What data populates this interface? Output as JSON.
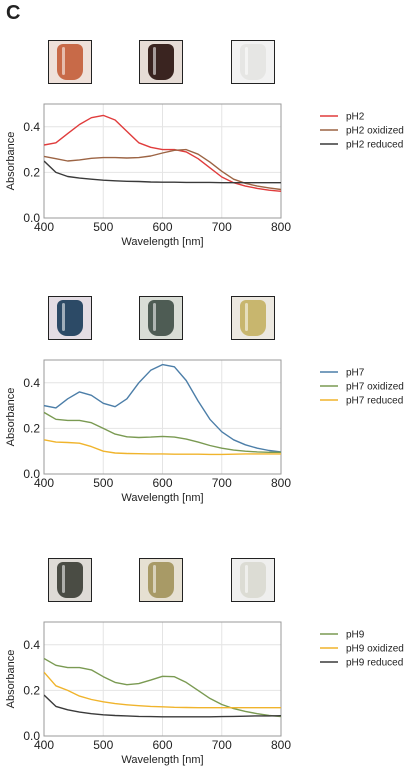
{
  "panel_label": "C",
  "chart_data": [
    {
      "type": "line",
      "xlabel": "Wavelength [nm]",
      "ylabel": "Absorbance",
      "xlim": [
        400,
        800
      ],
      "ylim": [
        0.0,
        0.5
      ],
      "xticks": [
        "400",
        "500",
        "600",
        "700",
        "800"
      ],
      "yticks": [
        "0.0",
        "0.2",
        "0.4"
      ],
      "grid": true,
      "legend": "right",
      "photos": [
        {
          "name": "pH2-vial-photo",
          "bg": "#efe1da",
          "liquid": "#c86a48"
        },
        {
          "name": "pH2-oxidized-vial-photo",
          "bg": "#e6dcd6",
          "liquid": "#3a2420"
        },
        {
          "name": "pH2-reduced-vial-photo",
          "bg": "#f2f2f2",
          "liquid": "#e6e6e4"
        }
      ],
      "series": [
        {
          "name": "pH2",
          "color": "#e03c3c",
          "x": [
            400,
            420,
            440,
            460,
            480,
            500,
            520,
            540,
            560,
            580,
            600,
            620,
            640,
            660,
            680,
            700,
            720,
            740,
            760,
            780,
            800
          ],
          "y": [
            0.32,
            0.33,
            0.37,
            0.41,
            0.44,
            0.45,
            0.43,
            0.38,
            0.33,
            0.31,
            0.3,
            0.3,
            0.29,
            0.26,
            0.22,
            0.18,
            0.155,
            0.14,
            0.13,
            0.122,
            0.117
          ]
        },
        {
          "name": "pH2 oxidized",
          "color": "#9c6444",
          "x": [
            400,
            420,
            440,
            460,
            480,
            500,
            520,
            540,
            560,
            580,
            600,
            620,
            640,
            660,
            680,
            700,
            720,
            740,
            760,
            780,
            800
          ],
          "y": [
            0.27,
            0.26,
            0.25,
            0.255,
            0.262,
            0.265,
            0.265,
            0.263,
            0.265,
            0.272,
            0.285,
            0.297,
            0.3,
            0.28,
            0.245,
            0.205,
            0.17,
            0.152,
            0.14,
            0.132,
            0.125
          ]
        },
        {
          "name": "pH2 reduced",
          "color": "#3a3a3a",
          "x": [
            400,
            420,
            440,
            460,
            480,
            500,
            520,
            540,
            560,
            580,
            600,
            620,
            640,
            660,
            680,
            700,
            720,
            740,
            760,
            780,
            800
          ],
          "y": [
            0.25,
            0.2,
            0.182,
            0.175,
            0.17,
            0.166,
            0.163,
            0.161,
            0.16,
            0.158,
            0.157,
            0.157,
            0.156,
            0.156,
            0.156,
            0.155,
            0.155,
            0.155,
            0.155,
            0.155,
            0.155
          ]
        }
      ]
    },
    {
      "type": "line",
      "xlabel": "Wavelength [nm]",
      "ylabel": "Absorbance",
      "xlim": [
        400,
        800
      ],
      "ylim": [
        0.0,
        0.5
      ],
      "xticks": [
        "400",
        "500",
        "600",
        "700",
        "800"
      ],
      "yticks": [
        "0.0",
        "0.2",
        "0.4"
      ],
      "grid": true,
      "legend": "right",
      "photos": [
        {
          "name": "pH7-vial-photo",
          "bg": "#e4dde4",
          "liquid": "#2c4a66"
        },
        {
          "name": "pH7-oxidized-vial-photo",
          "bg": "#d9ddd6",
          "liquid": "#4e5c54"
        },
        {
          "name": "pH7-reduced-vial-photo",
          "bg": "#ece8e0",
          "liquid": "#c8b66e"
        }
      ],
      "series": [
        {
          "name": "pH7",
          "color": "#4c7ea8",
          "x": [
            400,
            420,
            440,
            460,
            480,
            500,
            520,
            540,
            560,
            580,
            600,
            620,
            640,
            660,
            680,
            700,
            720,
            740,
            760,
            780,
            800
          ],
          "y": [
            0.3,
            0.29,
            0.33,
            0.36,
            0.345,
            0.31,
            0.295,
            0.33,
            0.4,
            0.455,
            0.48,
            0.47,
            0.41,
            0.32,
            0.24,
            0.185,
            0.15,
            0.128,
            0.113,
            0.103,
            0.097
          ]
        },
        {
          "name": "pH7 oxidized",
          "color": "#7a9a52",
          "x": [
            400,
            420,
            440,
            460,
            480,
            500,
            520,
            540,
            560,
            580,
            600,
            620,
            640,
            660,
            680,
            700,
            720,
            740,
            760,
            780,
            800
          ],
          "y": [
            0.27,
            0.24,
            0.235,
            0.235,
            0.225,
            0.2,
            0.175,
            0.163,
            0.16,
            0.162,
            0.165,
            0.162,
            0.153,
            0.14,
            0.125,
            0.113,
            0.105,
            0.1,
            0.097,
            0.095,
            0.095
          ]
        },
        {
          "name": "pH7 reduced",
          "color": "#f0b42c",
          "x": [
            400,
            420,
            440,
            460,
            480,
            500,
            520,
            540,
            560,
            580,
            600,
            620,
            640,
            660,
            680,
            700,
            720,
            740,
            760,
            780,
            800
          ],
          "y": [
            0.15,
            0.14,
            0.138,
            0.135,
            0.12,
            0.1,
            0.092,
            0.09,
            0.089,
            0.088,
            0.088,
            0.087,
            0.087,
            0.087,
            0.086,
            0.086,
            0.087,
            0.088,
            0.088,
            0.088,
            0.088
          ]
        }
      ]
    },
    {
      "type": "line",
      "xlabel": "Wavelength [nm]",
      "ylabel": "Absorbance",
      "xlim": [
        400,
        800
      ],
      "ylim": [
        0.0,
        0.5
      ],
      "xticks": [
        "400",
        "500",
        "600",
        "700",
        "800"
      ],
      "yticks": [
        "0.0",
        "0.2",
        "0.4"
      ],
      "grid": true,
      "legend": "right",
      "photos": [
        {
          "name": "pH9-vial-photo",
          "bg": "#dedbd6",
          "liquid": "#4a4c44"
        },
        {
          "name": "pH9-oxidized-vial-photo",
          "bg": "#e6e0d2",
          "liquid": "#a89a66"
        },
        {
          "name": "pH9-reduced-vial-photo",
          "bg": "#efefee",
          "liquid": "#dcdcd4"
        }
      ],
      "series": [
        {
          "name": "pH9",
          "color": "#7a9a52",
          "x": [
            400,
            420,
            440,
            460,
            480,
            500,
            520,
            540,
            560,
            580,
            600,
            620,
            640,
            660,
            680,
            700,
            720,
            740,
            760,
            780,
            800
          ],
          "y": [
            0.34,
            0.31,
            0.3,
            0.3,
            0.29,
            0.26,
            0.235,
            0.225,
            0.23,
            0.245,
            0.262,
            0.26,
            0.235,
            0.2,
            0.165,
            0.138,
            0.12,
            0.108,
            0.098,
            0.09,
            0.085
          ]
        },
        {
          "name": "pH9 oxidized",
          "color": "#f0b42c",
          "x": [
            400,
            420,
            440,
            460,
            480,
            500,
            520,
            540,
            560,
            580,
            600,
            620,
            640,
            660,
            680,
            700,
            720,
            740,
            760,
            780,
            800
          ],
          "y": [
            0.28,
            0.22,
            0.2,
            0.175,
            0.16,
            0.15,
            0.142,
            0.137,
            0.133,
            0.13,
            0.128,
            0.126,
            0.125,
            0.124,
            0.124,
            0.124,
            0.124,
            0.124,
            0.124,
            0.124,
            0.124
          ]
        },
        {
          "name": "pH9 reduced",
          "color": "#3a3a3a",
          "x": [
            400,
            420,
            440,
            460,
            480,
            500,
            520,
            540,
            560,
            580,
            600,
            620,
            640,
            660,
            680,
            700,
            720,
            740,
            760,
            780,
            800
          ],
          "y": [
            0.18,
            0.13,
            0.115,
            0.105,
            0.098,
            0.093,
            0.09,
            0.088,
            0.086,
            0.085,
            0.084,
            0.084,
            0.084,
            0.084,
            0.084,
            0.085,
            0.086,
            0.087,
            0.088,
            0.088,
            0.089
          ]
        }
      ]
    }
  ]
}
